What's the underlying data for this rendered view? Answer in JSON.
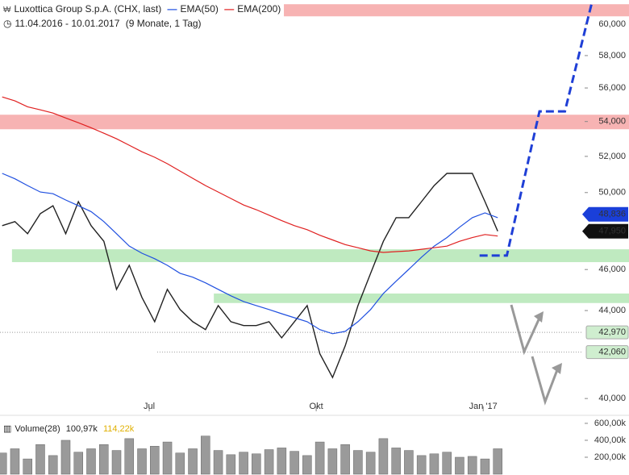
{
  "chart_data": {
    "type": "line",
    "title": "Luxottica Group S.p.A. (CHX, last)",
    "subtitle": "11.04.2016 - 10.01.2017",
    "period": "(9 Monate, 1 Tag)",
    "log_scale": true,
    "xlim": [
      -1.2,
      320
    ],
    "xticks": [
      {
        "value": 81,
        "label": "Jul"
      },
      {
        "value": 173,
        "label": "Okt"
      },
      {
        "value": 265,
        "label": "Jan '17"
      }
    ],
    "ylim": [
      39.45,
      61.6
    ],
    "yticks": [
      {
        "value": 40,
        "label": "40,000"
      },
      {
        "value": 44,
        "label": "44,000"
      },
      {
        "value": 46,
        "label": "46,000"
      },
      {
        "value": 50,
        "label": "50,000"
      },
      {
        "value": 52,
        "label": "52,000"
      },
      {
        "value": 54,
        "label": "54,000"
      },
      {
        "value": 56,
        "label": "56,000"
      },
      {
        "value": 58,
        "label": "58,000"
      },
      {
        "value": 60,
        "label": "60,000"
      }
    ],
    "x": [
      0,
      7,
      14,
      21,
      28,
      35,
      42,
      49,
      56,
      63,
      70,
      77,
      84,
      91,
      98,
      105,
      112,
      119,
      126,
      133,
      140,
      147,
      154,
      161,
      168,
      175,
      182,
      189,
      196,
      203,
      210,
      217,
      224,
      231,
      238,
      245,
      252,
      259,
      266,
      273
    ],
    "series": [
      {
        "color": "#222222",
        "values": [
          48.24,
          48.45,
          47.82,
          48.87,
          49.29,
          47.82,
          49.51,
          48.24,
          47.43,
          45.02,
          46.21,
          44.63,
          43.47,
          45.02,
          44.05,
          43.47,
          43.1,
          44.24,
          43.47,
          43.29,
          43.29,
          43.47,
          42.72,
          43.47,
          44.24,
          41.99,
          40.92,
          42.35,
          44.24,
          45.81,
          47.43,
          48.66,
          48.66,
          49.51,
          50.38,
          51.05,
          51.05,
          51.05,
          49.51,
          47.95
        ]
      },
      {
        "name": "EMA(50)",
        "color": "#2050e0",
        "values": [
          51.05,
          50.75,
          50.38,
          50.03,
          49.94,
          49.6,
          49.29,
          48.98,
          48.45,
          47.82,
          47.18,
          46.82,
          46.54,
          46.21,
          45.81,
          45.62,
          45.34,
          45.02,
          44.71,
          44.43,
          44.24,
          44.05,
          43.85,
          43.66,
          43.47,
          43.1,
          42.91,
          43.02,
          43.47,
          44.05,
          44.82,
          45.42,
          46.01,
          46.62,
          47.18,
          47.62,
          48.16,
          48.66,
          48.91,
          48.66
        ]
      },
      {
        "name": "EMA(200)",
        "color": "#e02020",
        "values": [
          55.46,
          55.22,
          54.87,
          54.69,
          54.5,
          54.21,
          53.93,
          53.64,
          53.32,
          53.0,
          52.63,
          52.26,
          51.95,
          51.59,
          51.18,
          50.78,
          50.38,
          50.03,
          49.68,
          49.33,
          49.08,
          48.79,
          48.5,
          48.24,
          48.03,
          47.74,
          47.5,
          47.26,
          47.1,
          46.94,
          46.86,
          46.9,
          46.94,
          47.02,
          47.1,
          47.18,
          47.43,
          47.62,
          47.78,
          47.7
        ]
      }
    ],
    "price_markers": [
      {
        "value": 48.836,
        "label": "48,836",
        "color": "#1a3fd9"
      },
      {
        "value": 47.95,
        "label": "47,950",
        "color": "#111111"
      }
    ],
    "levels": [
      {
        "value": 42.97,
        "label": "42,970",
        "start": -1.2
      },
      {
        "value": 42.06,
        "label": "42,060",
        "start": 85.4
      }
    ],
    "zones": [
      {
        "from": 60.52,
        "to": 61.32,
        "start": 155.2,
        "color": "#f7b3b3"
      },
      {
        "from": 53.55,
        "to": 54.4,
        "start": -1.2,
        "color": "#f7b3b3"
      },
      {
        "from": 46.37,
        "to": 47.02,
        "start": 5.4,
        "color": "#bfeac0"
      },
      {
        "from": 44.36,
        "to": 44.82,
        "start": 116.6,
        "color": "#bfeac0"
      }
    ],
    "projection": {
      "color": "#1f3fd6",
      "x": [
        263,
        278,
        296,
        310,
        325
      ],
      "y": [
        46.7,
        46.7,
        54.6,
        54.6,
        61.5
      ]
    },
    "volume": {
      "label": "Volume(28)",
      "last": "100,97k",
      "average": "114,22k",
      "color": "#9a9a9a",
      "ylim": [
        0,
        647000
      ],
      "yticks": [
        {
          "value": 200000,
          "label": "200,00k"
        },
        {
          "value": 400000,
          "label": "400,00k"
        },
        {
          "value": 600000,
          "label": "600,00k"
        }
      ],
      "values": [
        250000,
        300000,
        180000,
        350000,
        220000,
        400000,
        260000,
        300000,
        350000,
        280000,
        420000,
        300000,
        330000,
        380000,
        250000,
        300000,
        450000,
        280000,
        230000,
        260000,
        240000,
        290000,
        310000,
        270000,
        220000,
        380000,
        300000,
        350000,
        280000,
        260000,
        420000,
        310000,
        280000,
        220000,
        240000,
        260000,
        200000,
        210000,
        180000,
        300000
      ]
    }
  }
}
